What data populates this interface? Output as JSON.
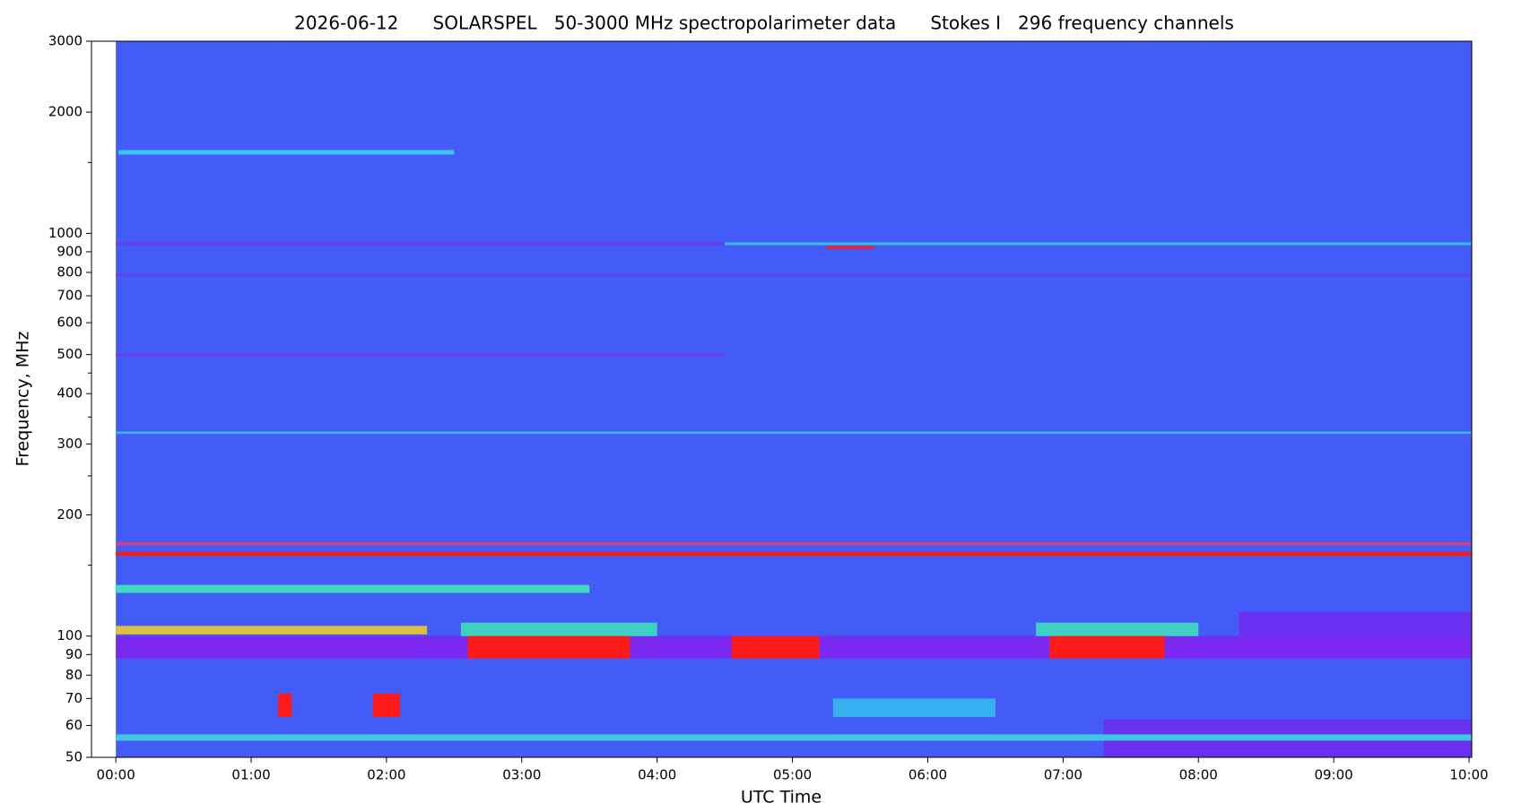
{
  "chart_data": {
    "type": "spectrogram",
    "title": "2026-06-12      SOLARSPEL   50-3000 MHz spectropolarimeter data      Stokes I   296 frequency channels",
    "x_label": "UTC Time",
    "y_label": "Frequency, MHz",
    "xlim": [
      -0.18,
      10.02
    ],
    "ylim": [
      50,
      3000
    ],
    "y_scale": "log",
    "xticks": [
      {
        "value": 0,
        "label": "00:00"
      },
      {
        "value": 1,
        "label": "01:00"
      },
      {
        "value": 2,
        "label": "02:00"
      },
      {
        "value": 3,
        "label": "03:00"
      },
      {
        "value": 4,
        "label": "04:00"
      },
      {
        "value": 5,
        "label": "05:00"
      },
      {
        "value": 6,
        "label": "06:00"
      },
      {
        "value": 7,
        "label": "07:00"
      },
      {
        "value": 8,
        "label": "08:00"
      },
      {
        "value": 9,
        "label": "09:00"
      },
      {
        "value": 10,
        "label": "10:00"
      }
    ],
    "yticks": [
      50,
      60,
      70,
      80,
      90,
      100,
      200,
      300,
      400,
      500,
      600,
      700,
      800,
      900,
      1000,
      2000,
      3000
    ],
    "yminorticks": [
      150,
      250,
      350,
      450,
      1500
    ],
    "features": [
      {
        "t0": 0,
        "t1": 10.02,
        "f0": 50,
        "f1": 3000,
        "color": "#435cf8"
      },
      {
        "t0": 0,
        "t1": 10.02,
        "f0": 88,
        "f1": 100,
        "color": "#7a2af0"
      },
      {
        "t0": 7.3,
        "t1": 10.02,
        "f0": 50,
        "f1": 62,
        "color": "#6a30f0"
      },
      {
        "t0": 8.3,
        "t1": 10.02,
        "f0": 100,
        "f1": 115,
        "color": "#6a30f0"
      },
      {
        "t0": 0,
        "t1": 4.5,
        "f0": 935,
        "f1": 950,
        "color": "#6a3ef0"
      },
      {
        "t0": 4.5,
        "t1": 10.02,
        "f0": 935,
        "f1": 950,
        "color": "#38b8f0"
      },
      {
        "t0": 0,
        "t1": 10.02,
        "f0": 780,
        "f1": 795,
        "color": "#5a4af0"
      },
      {
        "t0": 0,
        "t1": 4.5,
        "f0": 495,
        "f1": 505,
        "color": "#6a3ef0"
      },
      {
        "t0": 0.02,
        "t1": 2.5,
        "f0": 1570,
        "f1": 1610,
        "color": "#38c8f0"
      },
      {
        "t0": 0,
        "t1": 10.02,
        "f0": 318,
        "f1": 322,
        "color": "#38b8f0"
      },
      {
        "t0": 0,
        "t1": 10.02,
        "f0": 168,
        "f1": 171,
        "color": "#d04080"
      },
      {
        "t0": 0,
        "t1": 10.02,
        "f0": 158,
        "f1": 162,
        "color": "#e82020"
      },
      {
        "t0": 0,
        "t1": 3.5,
        "f0": 128,
        "f1": 134,
        "color": "#40d8c0"
      },
      {
        "t0": 0,
        "t1": 2.3,
        "f0": 101,
        "f1": 106,
        "color": "#e0c040"
      },
      {
        "t0": 2.55,
        "t1": 4.0,
        "f0": 100,
        "f1": 108,
        "color": "#40d0c0"
      },
      {
        "t0": 6.8,
        "t1": 8.0,
        "f0": 100,
        "f1": 108,
        "color": "#40d0c0"
      },
      {
        "t0": 2.6,
        "t1": 3.8,
        "f0": 88,
        "f1": 100,
        "color": "#ff1a1a"
      },
      {
        "t0": 4.55,
        "t1": 5.2,
        "f0": 88,
        "f1": 100,
        "color": "#ff1a1a"
      },
      {
        "t0": 6.9,
        "t1": 7.75,
        "f0": 88,
        "f1": 100,
        "color": "#ff1a1a"
      },
      {
        "t0": 0,
        "t1": 10.02,
        "f0": 55,
        "f1": 57,
        "color": "#40c8e0"
      },
      {
        "t0": 5.3,
        "t1": 6.5,
        "f0": 63,
        "f1": 70,
        "color": "#38b0f0"
      },
      {
        "t0": 1.2,
        "t1": 1.3,
        "f0": 63,
        "f1": 72,
        "color": "#ff1a1a"
      },
      {
        "t0": 1.9,
        "t1": 2.1,
        "f0": 63,
        "f1": 72,
        "color": "#ff1a1a"
      },
      {
        "t0": 5.25,
        "t1": 5.6,
        "f0": 915,
        "f1": 930,
        "color": "#ff1a1a"
      }
    ]
  }
}
